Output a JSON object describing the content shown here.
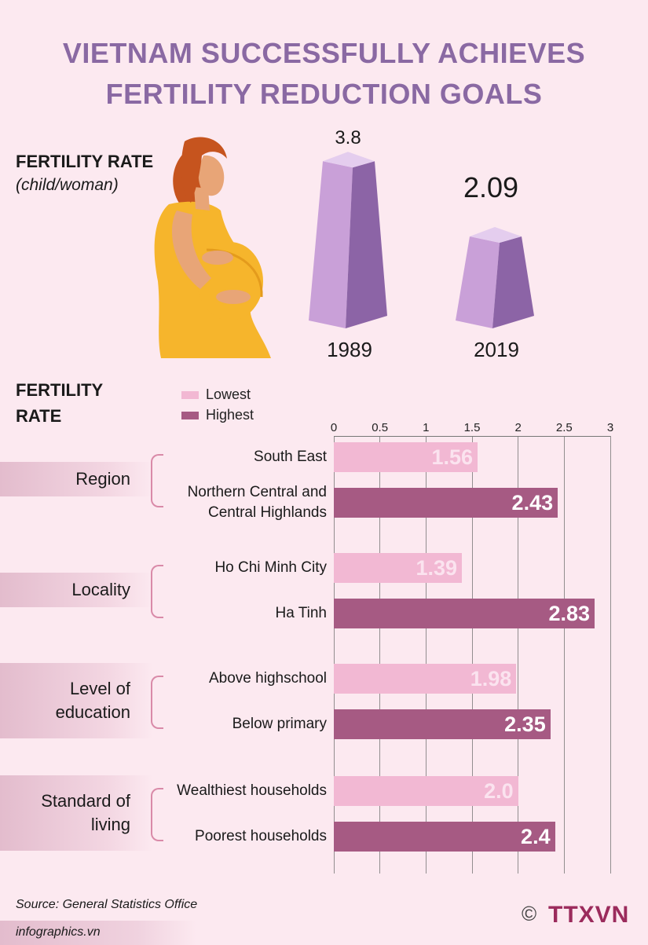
{
  "title": {
    "line1": "VIETNAM SUCCESSFULLY ACHIEVES",
    "line2": "FERTILITY REDUCTION GOALS"
  },
  "top_section": {
    "label": "FERTILITY RATE",
    "unit": "(child/woman)",
    "pillars": [
      {
        "year": "1989",
        "value": 3.8,
        "value_label": "3.8"
      },
      {
        "year": "2019",
        "value": 2.09,
        "value_label": "2.09"
      }
    ]
  },
  "chart_section": {
    "label_line1": "FERTILITY",
    "label_line2": "RATE",
    "legend": [
      {
        "name": "Lowest",
        "color": "#f2b8d3"
      },
      {
        "name": "Highest",
        "color": "#a65a83"
      }
    ]
  },
  "chart_data": {
    "type": "bar",
    "orientation": "horizontal",
    "xlim": [
      0,
      3
    ],
    "ticks": [
      "0",
      "0.5",
      "1",
      "1.5",
      "2",
      "2.5",
      "3"
    ],
    "tick_values": [
      0,
      0.5,
      1,
      1.5,
      2,
      2.5,
      3
    ],
    "groups": [
      {
        "name": "Region",
        "lines": [
          "Region"
        ],
        "bars": [
          {
            "category": "Lowest",
            "lines": [
              "South East"
            ],
            "value": 1.56,
            "label": "1.56"
          },
          {
            "category": "Highest",
            "lines": [
              "Northern Central and",
              "Central Highlands"
            ],
            "value": 2.43,
            "label": "2.43"
          }
        ]
      },
      {
        "name": "Locality",
        "lines": [
          "Locality"
        ],
        "bars": [
          {
            "category": "Lowest",
            "lines": [
              "Ho Chi Minh City"
            ],
            "value": 1.39,
            "label": "1.39"
          },
          {
            "category": "Highest",
            "lines": [
              "Ha Tinh"
            ],
            "value": 2.83,
            "label": "2.83"
          }
        ]
      },
      {
        "name": "Level of education",
        "lines": [
          "Level of",
          "education"
        ],
        "bars": [
          {
            "category": "Lowest",
            "lines": [
              "Above highschool"
            ],
            "value": 1.98,
            "label": "1.98"
          },
          {
            "category": "Highest",
            "lines": [
              "Below primary"
            ],
            "value": 2.35,
            "label": "2.35"
          }
        ]
      },
      {
        "name": "Standard of living",
        "lines": [
          "Standard of",
          "living"
        ],
        "bars": [
          {
            "category": "Lowest",
            "lines": [
              "Wealthiest households"
            ],
            "value": 2.0,
            "label": "2.0"
          },
          {
            "category": "Highest",
            "lines": [
              "Poorest households"
            ],
            "value": 2.4,
            "label": "2.4"
          }
        ]
      }
    ]
  },
  "colors": {
    "title": "#8a69a3",
    "pillar_light": "#c9a0d8",
    "pillar_dark": "#8c64a6",
    "pillar_top": "#e4cdee",
    "bar_low": "#f2b8d3",
    "bar_high": "#a65a83",
    "bar_low_text": "#fbe3ef",
    "bar_high_text": "#ffffff",
    "bracket": "#d98aa8",
    "axis": "#777777",
    "dress": "#f6b52c",
    "skin": "#e8a577",
    "hair": "#c6541e"
  },
  "footer": {
    "source": "Source: General Statistics Office",
    "site": "infographics.vn",
    "copyright": "©",
    "logo": "TTXVN"
  }
}
